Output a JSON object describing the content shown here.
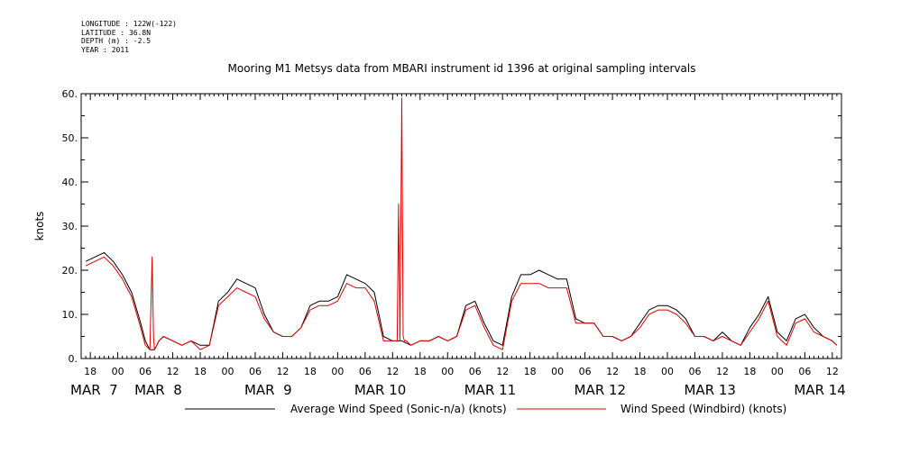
{
  "meta": {
    "longitude": "LONGITUDE : 122W(-122)",
    "latitude": "LATITUDE : 36.8N",
    "depth": "DEPTH (m) : -2.5",
    "year": "YEAR : 2011"
  },
  "chart_data": {
    "type": "line",
    "title": "Mooring M1 Metsys data from MBARI instrument id 1396 at original sampling intervals",
    "ylabel": "knots",
    "xlabel": "",
    "ylim": [
      0,
      60
    ],
    "y_ticks": [
      0,
      10,
      20,
      30,
      40,
      50,
      60
    ],
    "y_tick_labels": [
      "0.",
      "10.",
      "20.",
      "30.",
      "40.",
      "50.",
      "60."
    ],
    "x_range_hours": [
      -8,
      158
    ],
    "x_hour_ticks": [
      {
        "hour": -6,
        "label": "18"
      },
      {
        "hour": 0,
        "label": "00"
      },
      {
        "hour": 6,
        "label": "06"
      },
      {
        "hour": 12,
        "label": "12"
      },
      {
        "hour": 18,
        "label": "18"
      },
      {
        "hour": 24,
        "label": "00"
      },
      {
        "hour": 30,
        "label": "06"
      },
      {
        "hour": 36,
        "label": "12"
      },
      {
        "hour": 42,
        "label": "18"
      },
      {
        "hour": 48,
        "label": "00"
      },
      {
        "hour": 54,
        "label": "06"
      },
      {
        "hour": 60,
        "label": "12"
      },
      {
        "hour": 66,
        "label": "18"
      },
      {
        "hour": 72,
        "label": "00"
      },
      {
        "hour": 78,
        "label": "06"
      },
      {
        "hour": 84,
        "label": "12"
      },
      {
        "hour": 90,
        "label": "18"
      },
      {
        "hour": 96,
        "label": "00"
      },
      {
        "hour": 102,
        "label": "06"
      },
      {
        "hour": 108,
        "label": "12"
      },
      {
        "hour": 114,
        "label": "18"
      },
      {
        "hour": 120,
        "label": "00"
      },
      {
        "hour": 126,
        "label": "06"
      },
      {
        "hour": 132,
        "label": "12"
      },
      {
        "hour": 138,
        "label": "18"
      },
      {
        "hour": 144,
        "label": "00"
      },
      {
        "hour": 150,
        "label": "06"
      },
      {
        "hour": 156,
        "label": "12"
      }
    ],
    "x_day_labels": [
      {
        "hour": -8,
        "label": "MAR  7"
      },
      {
        "hour": 6,
        "label": "MAR  8"
      },
      {
        "hour": 30,
        "label": "MAR  9"
      },
      {
        "hour": 54,
        "label": "MAR 10"
      },
      {
        "hour": 78,
        "label": "MAR 11"
      },
      {
        "hour": 102,
        "label": "MAR 12"
      },
      {
        "hour": 126,
        "label": "MAR 13"
      },
      {
        "hour": 150,
        "label": "MAR 14"
      }
    ],
    "legend_placement": "bottom",
    "series": [
      {
        "name": "Average Wind Speed (Sonic-n/a) (knots)",
        "color": "#000000",
        "x_hours": [
          -7,
          -5,
          -3,
          -1,
          1,
          3,
          5,
          6,
          7,
          8,
          9,
          10,
          12,
          14,
          16,
          18,
          20,
          22,
          24,
          26,
          28,
          30,
          32,
          34,
          36,
          38,
          40,
          42,
          44,
          46,
          48,
          50,
          52,
          54,
          56,
          58,
          60,
          62,
          64,
          66,
          68,
          70,
          72,
          74,
          76,
          78,
          80,
          82,
          84,
          86,
          88,
          90,
          92,
          94,
          96,
          98,
          100,
          102,
          104,
          106,
          108,
          110,
          112,
          114,
          116,
          118,
          120,
          122,
          124,
          126,
          128,
          130,
          132,
          134,
          136,
          138,
          140,
          142,
          144,
          146,
          148,
          150,
          152,
          154,
          156,
          157
        ],
        "y": [
          22,
          23,
          24,
          22,
          19,
          15,
          8,
          4,
          2,
          2,
          4,
          5,
          4,
          3,
          4,
          3,
          3,
          13,
          15,
          18,
          17,
          16,
          10,
          6,
          5,
          5,
          7,
          12,
          13,
          13,
          14,
          19,
          18,
          17,
          15,
          5,
          4,
          4,
          3,
          4,
          4,
          5,
          4,
          5,
          12,
          13,
          8,
          4,
          3,
          14,
          19,
          19,
          20,
          19,
          18,
          18,
          9,
          8,
          8,
          5,
          5,
          4,
          5,
          8,
          11,
          12,
          12,
          11,
          9,
          5,
          5,
          4,
          6,
          4,
          3,
          7,
          10,
          14,
          6,
          4,
          9,
          10,
          7,
          5,
          4,
          3
        ]
      },
      {
        "name": "Wind Speed (Windbird) (knots)",
        "color": "#e00000",
        "x_hours": [
          -7,
          -5,
          -3,
          -1,
          1,
          3,
          5,
          6,
          7,
          7.5,
          7.8,
          8,
          9,
          10,
          12,
          14,
          16,
          18,
          20,
          22,
          24,
          26,
          28,
          30,
          32,
          34,
          36,
          38,
          40,
          42,
          44,
          46,
          48,
          50,
          52,
          54,
          56,
          58,
          60,
          61,
          61.3,
          61.6,
          62,
          62.3,
          62.6,
          63,
          64,
          66,
          68,
          70,
          72,
          74,
          76,
          78,
          80,
          82,
          84,
          86,
          88,
          90,
          92,
          94,
          96,
          98,
          100,
          102,
          104,
          106,
          108,
          110,
          112,
          114,
          116,
          118,
          120,
          122,
          124,
          126,
          128,
          130,
          132,
          134,
          136,
          138,
          140,
          142,
          144,
          146,
          148,
          150,
          152,
          154,
          156,
          157
        ],
        "y": [
          21,
          22,
          23,
          21,
          18,
          14,
          7,
          3,
          2,
          23,
          5,
          2,
          4,
          5,
          4,
          3,
          4,
          2,
          3,
          12,
          14,
          16,
          15,
          14,
          9,
          6,
          5,
          5,
          7,
          11,
          12,
          12,
          13,
          17,
          16,
          16,
          13,
          4,
          4,
          4,
          35,
          4,
          59,
          5,
          4,
          4,
          3,
          4,
          4,
          5,
          4,
          5,
          11,
          12,
          7,
          3,
          2,
          13,
          17,
          17,
          17,
          16,
          16,
          16,
          8,
          8,
          8,
          5,
          5,
          4,
          5,
          7,
          10,
          11,
          11,
          10,
          8,
          5,
          5,
          4,
          5,
          4,
          3,
          6,
          9,
          13,
          5,
          3,
          8,
          9,
          6,
          5,
          4,
          3
        ]
      }
    ]
  }
}
